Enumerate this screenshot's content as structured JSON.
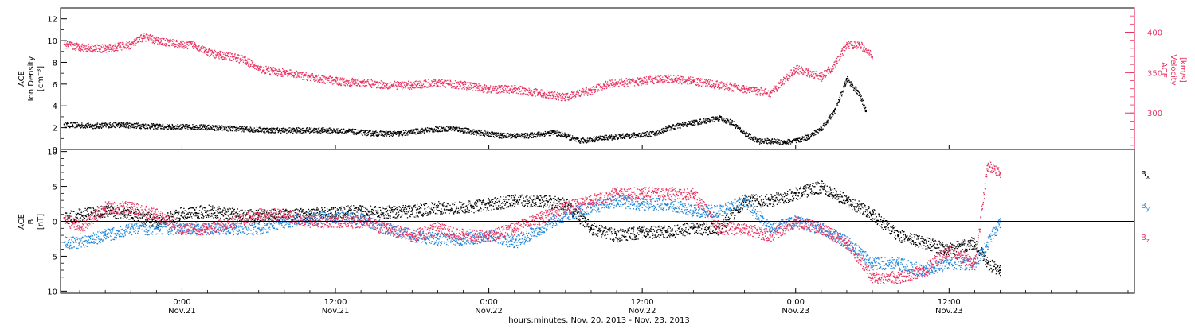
{
  "colors": {
    "black": "#000000",
    "red": "#e8315f",
    "blue": "#1e84d8"
  },
  "x_axis": {
    "label": "hours:minutes, Nov. 20, 2013 - Nov. 23, 2013",
    "range_hours": [
      -9.5,
      74.5
    ],
    "ticks": [
      {
        "hour": 0,
        "time": "0:00",
        "date": "Nov.21"
      },
      {
        "hour": 12,
        "time": "12:00",
        "date": "Nov.21"
      },
      {
        "hour": 24,
        "time": "0:00",
        "date": "Nov.22"
      },
      {
        "hour": 36,
        "time": "12:00",
        "date": "Nov.22"
      },
      {
        "hour": 48,
        "time": "0:00",
        "date": "Nov.23"
      },
      {
        "hour": 60,
        "time": "12:00",
        "date": "Nov.23"
      }
    ]
  },
  "chart_data": [
    {
      "type": "scatter",
      "panel": "top",
      "left_axis": {
        "label_lines": [
          "ACE",
          "Ion Density",
          "[cm⁻³]"
        ],
        "ylim": [
          0,
          13
        ],
        "ticks": [
          0,
          2,
          4,
          6,
          8,
          10,
          12
        ],
        "color": "#000000"
      },
      "right_axis": {
        "label_lines": [
          "ACE",
          "Velocity",
          "[km/s]"
        ],
        "ylim": [
          255,
          430
        ],
        "ticks": [
          300,
          350,
          400
        ],
        "color": "#e8315f"
      },
      "series": [
        {
          "axis": "left",
          "color": "#000000",
          "x": [
            -9.2,
            -7,
            -5,
            -3,
            -1,
            1,
            3,
            5,
            7,
            9,
            11,
            13,
            15,
            17,
            19,
            21,
            23,
            25,
            27,
            29,
            30,
            31,
            33,
            35,
            37,
            38,
            40,
            42,
            43,
            44,
            45,
            46,
            47,
            48,
            49,
            50,
            51,
            52,
            53,
            53.5
          ],
          "y": [
            2.3,
            2.2,
            2.3,
            2.2,
            2.1,
            2.1,
            2,
            1.9,
            1.8,
            1.8,
            1.8,
            1.7,
            1.5,
            1.5,
            1.8,
            2,
            1.6,
            1.3,
            1.3,
            1.6,
            1.3,
            0.8,
            1.1,
            1.3,
            1.5,
            2,
            2.5,
            2.9,
            2.5,
            1.5,
            0.8,
            0.8,
            0.7,
            0.8,
            1.2,
            2,
            3.5,
            6.5,
            5,
            3.5
          ]
        },
        {
          "axis": "right",
          "color": "#e8315f",
          "x": [
            -9.2,
            -8,
            -6,
            -4,
            -3,
            -2,
            0,
            1,
            2,
            3,
            4,
            5,
            6,
            8,
            10,
            12,
            14,
            16,
            18,
            20,
            22,
            24,
            26,
            28,
            29,
            30,
            31,
            32,
            33,
            34,
            36,
            38,
            40,
            42,
            44,
            46,
            48,
            49,
            50,
            51,
            52,
            53,
            54
          ],
          "y": [
            385,
            382,
            380,
            385,
            395,
            390,
            385,
            385,
            375,
            372,
            370,
            365,
            355,
            350,
            345,
            340,
            338,
            335,
            335,
            338,
            335,
            330,
            330,
            325,
            322,
            320,
            325,
            328,
            335,
            338,
            340,
            343,
            340,
            335,
            330,
            325,
            355,
            350,
            345,
            360,
            385,
            385,
            370
          ]
        }
      ]
    },
    {
      "type": "scatter",
      "panel": "bottom",
      "left_axis": {
        "label_lines": [
          "ACE",
          "B",
          "[nT]"
        ],
        "ylim": [
          -10.3,
          10.3
        ],
        "ticks": [
          -10,
          -5,
          0,
          5,
          10
        ],
        "color": "#000000"
      },
      "zero_line": true,
      "legend": [
        {
          "name": "B",
          "sub": "x",
          "color": "#000000"
        },
        {
          "name": "B",
          "sub": "y",
          "color": "#1e84d8"
        },
        {
          "name": "B",
          "sub": "z",
          "color": "#e8315f"
        }
      ],
      "series": [
        {
          "name": "Bx",
          "color": "#000000",
          "x": [
            -9.2,
            -8,
            -6,
            -4,
            -2,
            0,
            2,
            4,
            6,
            8,
            10,
            12,
            14,
            16,
            18,
            20,
            22,
            24,
            26,
            28,
            30,
            32,
            34,
            36,
            38,
            40,
            42,
            44,
            46,
            48,
            50,
            52,
            54,
            56,
            58,
            60,
            62,
            63,
            64
          ],
          "y": [
            0.5,
            1,
            1.5,
            1.2,
            0,
            1.2,
            1.5,
            1,
            0.8,
            1,
            1,
            1.3,
            1.5,
            1.4,
            1.5,
            2,
            2,
            2.5,
            3,
            3,
            2.5,
            -1,
            -2,
            -1.5,
            -1.5,
            -1,
            -1,
            3,
            3,
            4,
            5,
            3,
            1,
            -2,
            -3,
            -4,
            -3,
            -6,
            -7
          ]
        },
        {
          "name": "By",
          "color": "#1e84d8",
          "x": [
            -9.2,
            -8,
            -6,
            -4,
            -2,
            0,
            2,
            4,
            6,
            8,
            10,
            12,
            14,
            16,
            18,
            20,
            22,
            24,
            26,
            28,
            30,
            32,
            34,
            36,
            38,
            40,
            42,
            44,
            46,
            48,
            50,
            52,
            54,
            56,
            58,
            60,
            62,
            63,
            64
          ],
          "y": [
            -3,
            -3,
            -2,
            -1,
            -1,
            -1,
            -1,
            -1,
            -1,
            0,
            0.5,
            0.5,
            0.5,
            -1,
            -2,
            -2.5,
            -2.5,
            -2,
            -3,
            -1,
            1,
            2,
            3,
            2.5,
            2.5,
            1.5,
            1.5,
            3,
            -1,
            0,
            -1,
            -3,
            -6,
            -6,
            -7,
            -6,
            -6,
            -3,
            0
          ]
        },
        {
          "name": "Bz",
          "color": "#e8315f",
          "x": [
            -9.2,
            -8,
            -6,
            -4,
            -2,
            0,
            2,
            4,
            6,
            8,
            10,
            12,
            14,
            16,
            18,
            20,
            22,
            24,
            26,
            28,
            30,
            32,
            34,
            36,
            38,
            40,
            42,
            44,
            46,
            48,
            50,
            52,
            54,
            56,
            58,
            60,
            62,
            63,
            64
          ],
          "y": [
            0.5,
            -1,
            2,
            2,
            1,
            -1,
            -1,
            0,
            1,
            1,
            0,
            0,
            0,
            -1,
            -2,
            -1,
            -2,
            -2,
            -1,
            0.5,
            2,
            3,
            4,
            4,
            4,
            4,
            -1,
            -1,
            -2,
            0,
            -1,
            -3,
            -8,
            -8,
            -7,
            -4,
            -6,
            8,
            7
          ]
        }
      ]
    }
  ]
}
